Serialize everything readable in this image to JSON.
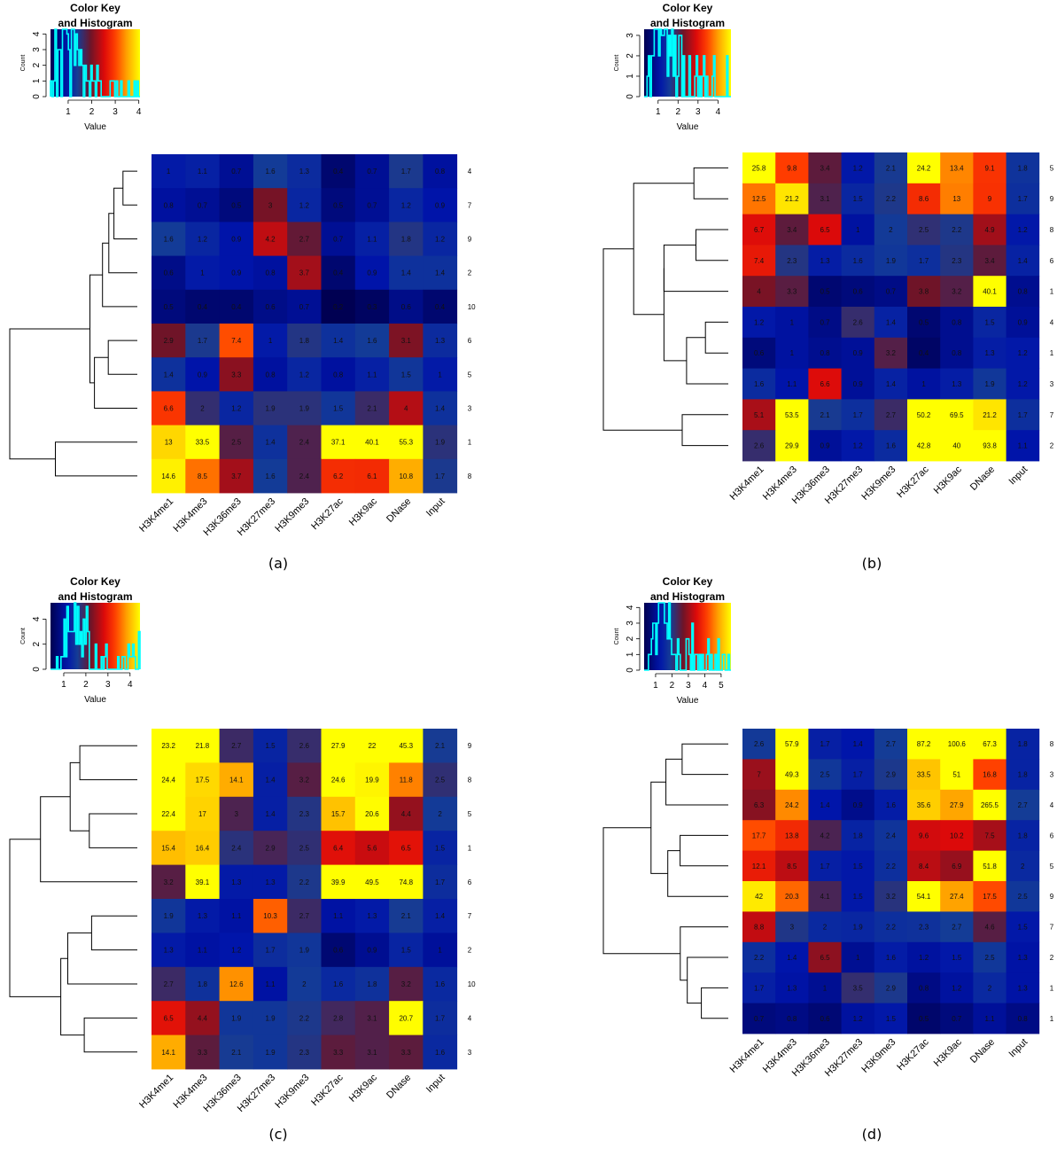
{
  "chart_data": [
    {
      "type": "heatmap",
      "caption": "(a)",
      "key": {
        "title_line1": "Color Key",
        "title_line2": "and Histogram",
        "xlabel": "Value",
        "ylabel": "Count",
        "xlim": [
          0.25,
          4.05
        ],
        "xticks": [
          1,
          2,
          3,
          4
        ],
        "ylim": [
          0,
          4.3
        ],
        "yticks": [
          0,
          1,
          2,
          3,
          4
        ]
      },
      "columns": [
        "H3K4me1",
        "H3K4me3",
        "H3K36me3",
        "H3K27me3",
        "H3K9me3",
        "H3K27ac",
        "H3K9ac",
        "DNase",
        "Input"
      ],
      "rows": [
        "4",
        "7",
        "9",
        "2",
        "10",
        "6",
        "5",
        "3",
        "1",
        "8"
      ],
      "values": [
        [
          1,
          1.1,
          0.7,
          1.6,
          1.3,
          0.4,
          0.7,
          1.7,
          0.8
        ],
        [
          0.8,
          0.7,
          0.5,
          3,
          1.2,
          0.5,
          0.7,
          1.2,
          0.9
        ],
        [
          1.6,
          1.2,
          0.9,
          4.2,
          2.7,
          0.7,
          1.1,
          1.8,
          1.2
        ],
        [
          0.6,
          1,
          0.9,
          0.8,
          3.7,
          0.4,
          0.9,
          1.4,
          1.4
        ],
        [
          0.5,
          0.4,
          0.4,
          0.6,
          0.7,
          0.2,
          0.3,
          0.6,
          0.4
        ],
        [
          2.9,
          1.7,
          7.4,
          1,
          1.8,
          1.4,
          1.6,
          3.1,
          1.3
        ],
        [
          1.4,
          0.9,
          3.3,
          0.8,
          1.2,
          0.8,
          1.1,
          1.5,
          1
        ],
        [
          6.6,
          2,
          1.2,
          1.9,
          1.9,
          1.5,
          2.1,
          4,
          1.4
        ],
        [
          13,
          33.5,
          2.5,
          1.4,
          2.4,
          37.1,
          40.1,
          55.3,
          1.9
        ],
        [
          14.6,
          8.5,
          3.7,
          1.6,
          2.4,
          6.2,
          6.1,
          10.8,
          1.7
        ]
      ]
    },
    {
      "type": "heatmap",
      "caption": "(b)",
      "key": {
        "title_line1": "Color Key",
        "title_line2": "and Histogram",
        "xlabel": "Value",
        "ylabel": "Count",
        "xlim": [
          0.3,
          4.65
        ],
        "xticks": [
          1,
          2,
          3,
          4
        ],
        "ylim": [
          0,
          3.3
        ],
        "yticks": [
          0,
          1,
          2,
          3
        ]
      },
      "columns": [
        "H3K4me1",
        "H3K4me3",
        "H3K36me3",
        "H3K27me3",
        "H3K9me3",
        "H3K27ac",
        "H3K9ac",
        "DNase",
        "Input"
      ],
      "rows": [
        "5",
        "9",
        "8",
        "6",
        "1",
        "4",
        "1",
        "3",
        "7",
        "2"
      ],
      "values": [
        [
          25.8,
          9.8,
          3.4,
          1.2,
          2.1,
          24.2,
          13.4,
          9.1,
          1.8
        ],
        [
          12.5,
          21.2,
          3.1,
          1.5,
          2.2,
          8.6,
          13,
          9,
          1.7
        ],
        [
          6.7,
          3.4,
          6.5,
          1,
          2,
          2.5,
          2.2,
          4.9,
          1.2
        ],
        [
          7.4,
          2.3,
          1.3,
          1.6,
          1.9,
          1.7,
          2.3,
          3.4,
          1.4
        ],
        [
          4,
          3.3,
          0.5,
          0.6,
          0.7,
          3.8,
          3.2,
          40.1,
          0.8
        ],
        [
          1.2,
          1,
          0.7,
          2.6,
          1.4,
          0.5,
          0.8,
          1.5,
          0.9
        ],
        [
          0.6,
          1,
          0.8,
          0.9,
          3.2,
          0.4,
          0.8,
          1.3,
          1.2
        ],
        [
          1.6,
          1.1,
          6.6,
          0.9,
          1.4,
          1,
          1.3,
          1.9,
          1.2
        ],
        [
          5.1,
          53.5,
          2.1,
          1.7,
          2.7,
          50.2,
          69.5,
          21.2,
          1.7
        ],
        [
          2.6,
          29.9,
          0.9,
          1.2,
          1.6,
          42.8,
          40,
          93.8,
          1.1
        ]
      ]
    },
    {
      "type": "heatmap",
      "caption": "(c)",
      "key": {
        "title_line1": "Color Key",
        "title_line2": "and Histogram",
        "xlabel": "Value",
        "ylabel": "Count",
        "xlim": [
          0.4,
          4.45
        ],
        "xticks": [
          1,
          2,
          3,
          4
        ],
        "ylim": [
          0,
          5.3
        ],
        "yticks": [
          0,
          2,
          4
        ]
      },
      "columns": [
        "H3K4me1",
        "H3K4me3",
        "H3K36me3",
        "H3K27me3",
        "H3K9me3",
        "H3K27ac",
        "H3K9ac",
        "DNase",
        "Input"
      ],
      "rows": [
        "9",
        "8",
        "5",
        "1",
        "6",
        "7",
        "2",
        "10",
        "4",
        "3"
      ],
      "values": [
        [
          23.2,
          21.8,
          2.7,
          1.5,
          2.6,
          27.9,
          22,
          45.3,
          2.1
        ],
        [
          24.4,
          17.5,
          14.1,
          1.4,
          3.2,
          24.6,
          19.9,
          11.8,
          2.5
        ],
        [
          22.4,
          17,
          3,
          1.4,
          2.3,
          15.7,
          20.6,
          4.4,
          2
        ],
        [
          15.4,
          16.4,
          2.4,
          2.9,
          2.5,
          6.4,
          5.6,
          6.5,
          1.5
        ],
        [
          3.2,
          39.1,
          1.3,
          1.3,
          2.2,
          39.9,
          49.5,
          74.8,
          1.7
        ],
        [
          1.9,
          1.3,
          1.1,
          10.3,
          2.7,
          1.1,
          1.3,
          2.1,
          1.4
        ],
        [
          1.3,
          1.1,
          1.2,
          1.7,
          1.9,
          0.6,
          0.9,
          1.5,
          1
        ],
        [
          2.7,
          1.8,
          12.6,
          1.1,
          2,
          1.6,
          1.8,
          3.2,
          1.6
        ],
        [
          6.5,
          4.4,
          1.9,
          1.9,
          2.2,
          2.8,
          3.1,
          20.7,
          1.7
        ],
        [
          14.1,
          3.3,
          2.1,
          1.9,
          2.3,
          3.3,
          3.1,
          3.3,
          1.6
        ]
      ]
    },
    {
      "type": "heatmap",
      "caption": "(d)",
      "key": {
        "title_line1": "Color Key",
        "title_line2": "and Histogram",
        "xlabel": "Value",
        "ylabel": "Count",
        "xlim": [
          0.3,
          5.6
        ],
        "xticks": [
          1,
          2,
          3,
          4,
          5
        ],
        "ylim": [
          0,
          4.3
        ],
        "yticks": [
          0,
          1,
          2,
          3,
          4
        ]
      },
      "columns": [
        "H3K4me1",
        "H3K4me3",
        "H3K36me3",
        "H3K27me3",
        "H3K9me3",
        "H3K27ac",
        "H3K9ac",
        "DNase",
        "Input"
      ],
      "rows": [
        "8",
        "3",
        "4",
        "6",
        "5",
        "9",
        "7",
        "2",
        "1",
        "1"
      ],
      "values": [
        [
          2.6,
          57.9,
          1.7,
          1.4,
          2.7,
          87.2,
          100.6,
          67.3,
          1.8
        ],
        [
          7,
          49.3,
          2.5,
          1.7,
          2.9,
          33.5,
          51,
          16.8,
          1.8
        ],
        [
          6.3,
          24.2,
          1.4,
          0.9,
          1.6,
          35.6,
          27.9,
          265.5,
          2.7
        ],
        [
          17.7,
          13.8,
          4.2,
          1.8,
          2.4,
          9.6,
          10.2,
          7.5,
          1.8
        ],
        [
          12.1,
          8.5,
          1.7,
          1.5,
          2.2,
          8.4,
          6.9,
          51.8,
          2
        ],
        [
          42,
          20.3,
          4.1,
          1.5,
          3.2,
          54.1,
          27.4,
          17.5,
          2.5
        ],
        [
          8.8,
          3,
          2,
          1.9,
          2.2,
          2.3,
          2.7,
          4.6,
          1.5
        ],
        [
          2.2,
          1.4,
          6.5,
          1,
          1.6,
          1.2,
          1.5,
          2.5,
          1.3
        ],
        [
          1.7,
          1.3,
          1,
          3.5,
          2.9,
          0.8,
          1.2,
          2,
          1.3
        ],
        [
          0.7,
          0.8,
          0.6,
          1.2,
          1.5,
          0.5,
          0.7,
          1.1,
          0.8
        ]
      ]
    }
  ]
}
